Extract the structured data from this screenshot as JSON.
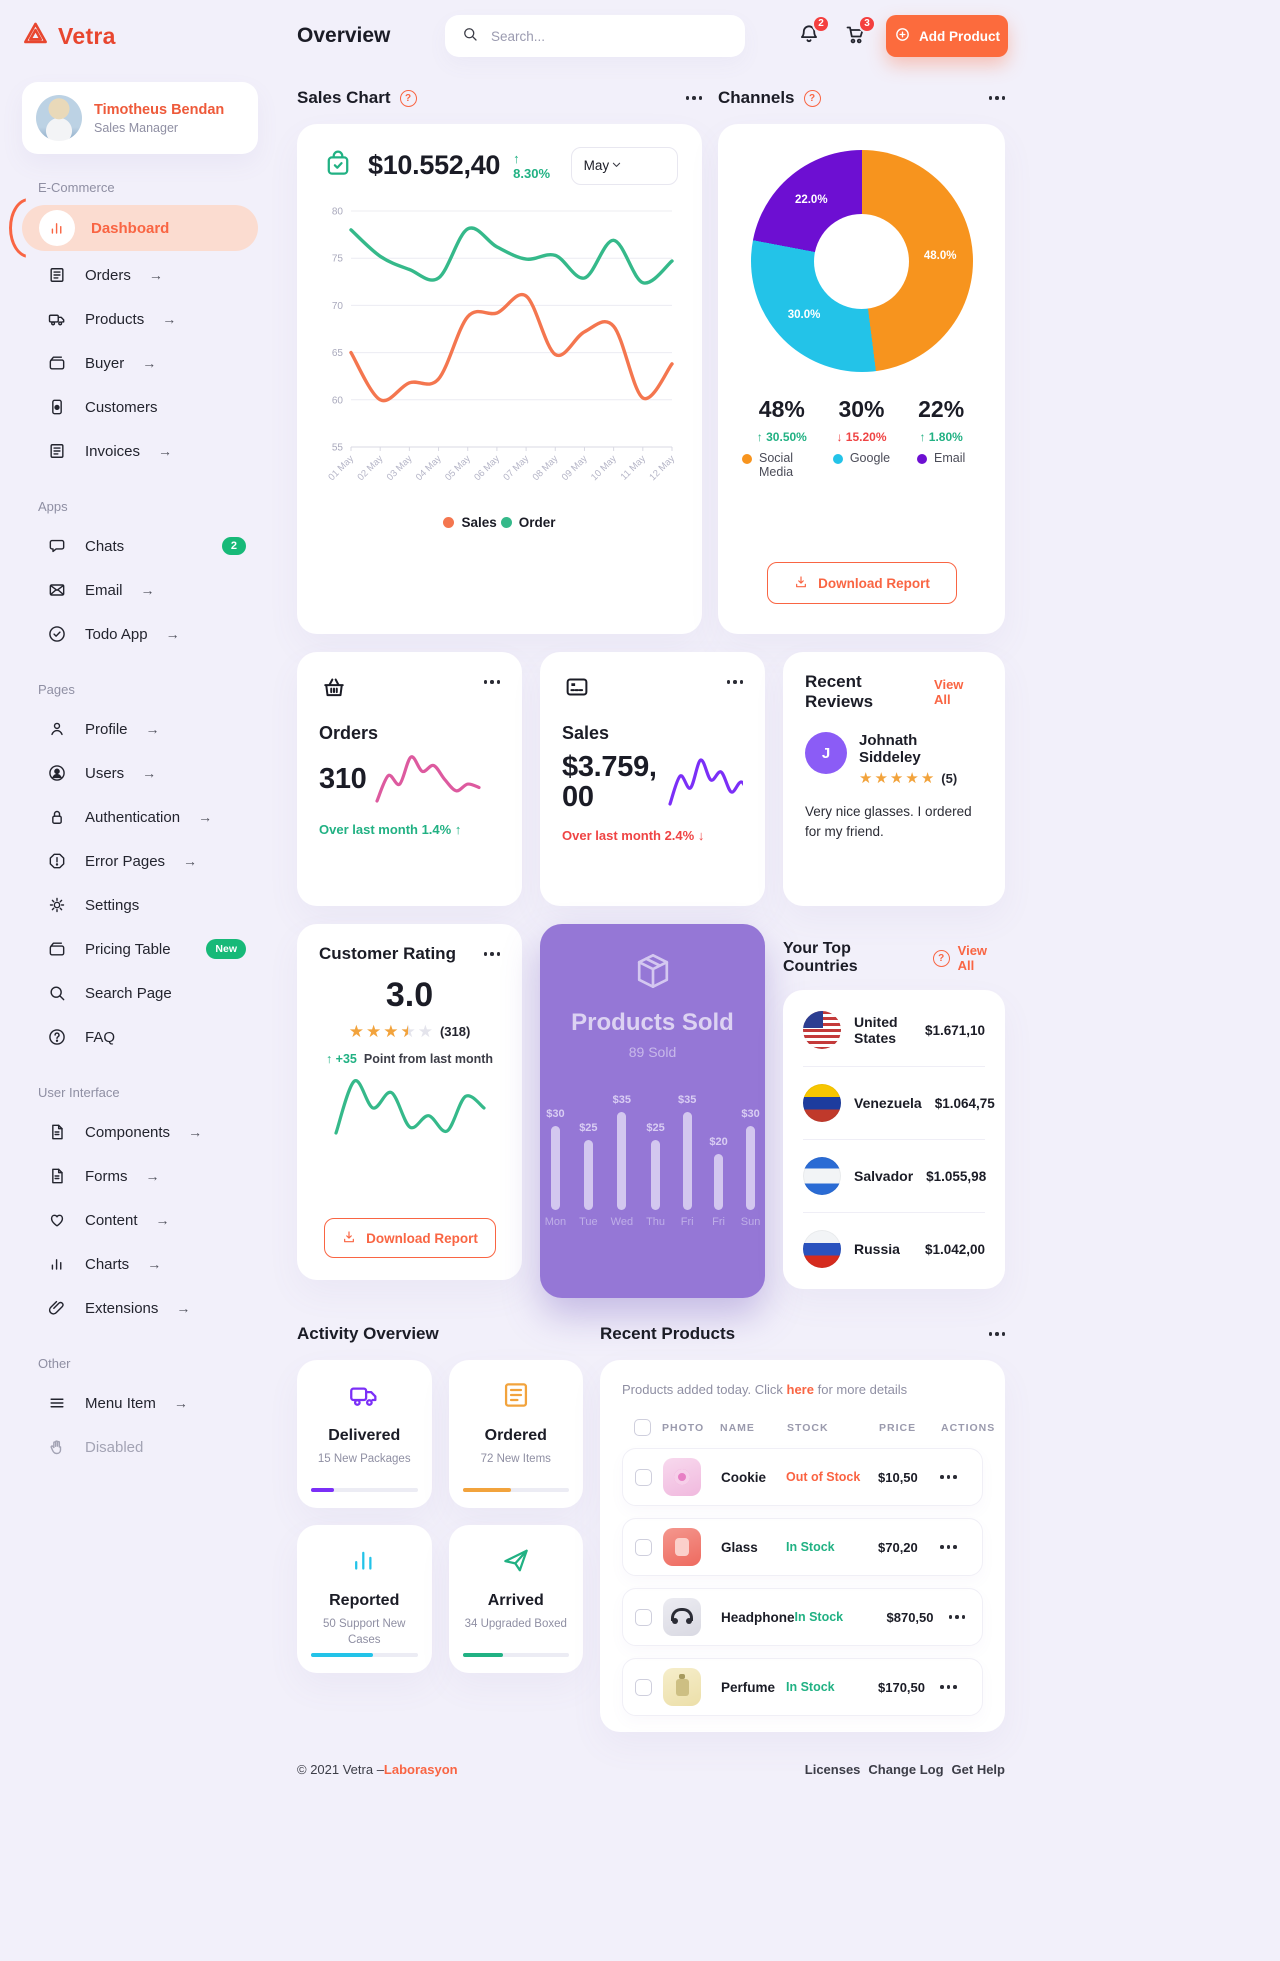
{
  "ui": {
    "dots": "...",
    "arrow": "→",
    "help": "?"
  },
  "brand": {
    "name": "Vetra"
  },
  "topbar": {
    "page_title": "Overview",
    "search_placeholder": "Search...",
    "notifications_count": "2",
    "cart_count": "3",
    "add_product_label": "Add Product"
  },
  "sidebar": {
    "user": {
      "name": "Timotheus Bendan",
      "role": "Sales Manager"
    },
    "sections": [
      {
        "label": "E-Commerce",
        "items": [
          {
            "label": "Dashboard",
            "icon": "bars",
            "active": true
          },
          {
            "label": "Orders",
            "icon": "receipt",
            "arrow": true
          },
          {
            "label": "Products",
            "icon": "truck",
            "arrow": true
          },
          {
            "label": "Buyer",
            "icon": "wallet",
            "arrow": true
          },
          {
            "label": "Customers",
            "icon": "idcard"
          },
          {
            "label": "Invoices",
            "icon": "receipt",
            "arrow": true
          }
        ]
      },
      {
        "label": "Apps",
        "items": [
          {
            "label": "Chats",
            "icon": "chat",
            "badge": "2"
          },
          {
            "label": "Email",
            "icon": "mail",
            "arrow": true
          },
          {
            "label": "Todo App",
            "icon": "check-circle",
            "arrow": true
          }
        ]
      },
      {
        "label": "Pages",
        "items": [
          {
            "label": "Profile",
            "icon": "person",
            "arrow": true
          },
          {
            "label": "Users",
            "icon": "person-circle",
            "arrow": true
          },
          {
            "label": "Authentication",
            "icon": "lock",
            "arrow": true
          },
          {
            "label": "Error Pages",
            "icon": "alert",
            "arrow": true
          },
          {
            "label": "Settings",
            "icon": "gear"
          },
          {
            "label": "Pricing Table",
            "icon": "wallet",
            "tag": "New"
          },
          {
            "label": "Search Page",
            "icon": "search"
          },
          {
            "label": "FAQ",
            "icon": "help"
          }
        ]
      },
      {
        "label": "User Interface",
        "items": [
          {
            "label": "Components",
            "icon": "file",
            "arrow": true
          },
          {
            "label": "Forms",
            "icon": "file",
            "arrow": true
          },
          {
            "label": "Content",
            "icon": "heart",
            "arrow": true
          },
          {
            "label": "Charts",
            "icon": "bars",
            "arrow": true
          },
          {
            "label": "Extensions",
            "icon": "clip",
            "arrow": true
          }
        ]
      },
      {
        "label": "Other",
        "items": [
          {
            "label": "Menu Item",
            "icon": "menu",
            "arrow": true
          },
          {
            "label": "Disabled",
            "icon": "hand",
            "disabled": true
          }
        ]
      }
    ]
  },
  "sales": {
    "section_title": "Sales Chart",
    "amount": "$10.552,40",
    "delta": "↑ 8.30%",
    "month": "May",
    "chart": {
      "type": "line",
      "ylim": [
        55,
        80
      ],
      "y_ticks": [
        80,
        75,
        70,
        65,
        60,
        55
      ],
      "x_labels": [
        "01 May",
        "02 May",
        "03 May",
        "04 May",
        "05 May",
        "06 May",
        "07 May",
        "08 May",
        "09 May",
        "10 May",
        "11 May",
        "12 May"
      ],
      "series": [
        {
          "name": "Sales",
          "color": "#f4764f",
          "values": [
            65,
            60,
            61.8,
            62.2,
            68.8,
            69.2,
            71,
            64.8,
            67.2,
            67.8,
            60.2,
            63.8
          ]
        },
        {
          "name": "Order",
          "color": "#35b98a",
          "values": [
            78,
            75.2,
            73.8,
            72.9,
            78.1,
            76.2,
            74.9,
            75.3,
            72.9,
            76.9,
            72.4,
            74.7
          ]
        }
      ],
      "legend_position": "bottom"
    }
  },
  "channels": {
    "section_title": "Channels",
    "download_label": "Download Report",
    "chart": {
      "type": "donut",
      "slices": [
        {
          "label": "Social Media",
          "value": 48,
          "big": "48%",
          "slice_label": "48.0%",
          "delta": "↑ 30.50%",
          "dir": "up",
          "color": "#f7941e"
        },
        {
          "label": "Google",
          "value": 30,
          "big": "30%",
          "slice_label": "30.0%",
          "delta": "↓ 15.20%",
          "dir": "down",
          "color": "#23c3e8"
        },
        {
          "label": "Email",
          "value": 22,
          "big": "22%",
          "slice_label": "22.0%",
          "delta": "↑ 1.80%",
          "dir": "up",
          "color": "#6d0fd2"
        }
      ]
    }
  },
  "orders_card": {
    "title": "Orders",
    "value": "310",
    "trend": "Over last month 1.4% ↑",
    "dir": "up",
    "spark": {
      "type": "line",
      "color": "#dd5a9f",
      "values": [
        1,
        4,
        3,
        6.2,
        4.5,
        5.2,
        3.5,
        2.2,
        3.0,
        2.6
      ]
    }
  },
  "sales_card": {
    "title": "Sales",
    "value": "$3.759,00",
    "trend": "Over last month 2.4% ↓",
    "dir": "down",
    "spark": {
      "type": "line",
      "color": "#7b2ff7",
      "values": [
        1.8,
        4.6,
        3.4,
        6.2,
        4.2,
        5.0,
        3.0,
        4.0,
        2.4,
        3.4
      ]
    }
  },
  "reviews": {
    "title": "Recent Reviews",
    "view_all": "View All",
    "review": {
      "initial": "J",
      "avatar_color": "#8b5cf6",
      "name": "Johnath Siddeley",
      "stars": [
        1,
        1,
        1,
        1,
        1
      ],
      "count": "(5)",
      "text": "Very nice glasses. I ordered for my friend."
    }
  },
  "rating": {
    "title": "Customer Rating",
    "value": "3.0",
    "stars": [
      1,
      1,
      1,
      0.5,
      0
    ],
    "count": "(318)",
    "delta": "↑ +35",
    "note": "Point from last month",
    "download_label": "Download Report",
    "spark": {
      "type": "line",
      "color": "#35b98a",
      "values": [
        2.5,
        5.2,
        3.8,
        4.6,
        2.8,
        3.4,
        2.6,
        4.4,
        3.8
      ]
    }
  },
  "products_sold": {
    "title": "Products Sold",
    "subtitle": "89 Sold",
    "chart": {
      "type": "bar",
      "categories": [
        "Mon",
        "Tue",
        "Wed",
        "Thu",
        "Fri",
        "Fri",
        "Sun"
      ],
      "values": [
        30,
        25,
        35,
        25,
        35,
        20,
        30
      ],
      "value_labels": [
        "$30",
        "$25",
        "$35",
        "$25",
        "$35",
        "$20",
        "$30"
      ]
    }
  },
  "countries": {
    "title": "Your Top Countries",
    "view_all": "View All",
    "rows": [
      {
        "flag": "us",
        "name": "United States",
        "amount": "$1.671,10"
      },
      {
        "flag": "ve",
        "name": "Venezuela",
        "amount": "$1.064,75"
      },
      {
        "flag": "sv",
        "name": "Salvador",
        "amount": "$1.055,98"
      },
      {
        "flag": "ru",
        "name": "Russia",
        "amount": "$1.042,00"
      }
    ]
  },
  "activity": {
    "title": "Activity Overview",
    "cards": [
      {
        "icon": "truck",
        "color": "#7b2ff7",
        "title": "Delivered",
        "subtitle": "15 New Packages",
        "progress": 22
      },
      {
        "icon": "receipt",
        "color": "#f2a33c",
        "title": "Ordered",
        "subtitle": "72 New Items",
        "progress": 46
      },
      {
        "icon": "bars",
        "color": "#23c3e8",
        "title": "Reported",
        "subtitle": "50 Support New Cases",
        "progress": 58
      },
      {
        "icon": "plane",
        "color": "#21b183",
        "title": "Arrived",
        "subtitle": "34 Upgraded Boxed",
        "progress": 38
      }
    ]
  },
  "products": {
    "title": "Recent Products",
    "intro_prefix": "Products added today. Click ",
    "intro_link": "here",
    "intro_suffix": " for more details",
    "columns": [
      "PHOTO",
      "NAME",
      "STOCK",
      "PRICE",
      "ACTIONS"
    ],
    "rows": [
      {
        "photo": "cookie",
        "name": "Cookie",
        "stock": "Out of Stock",
        "stock_dir": "out",
        "price": "$10,50"
      },
      {
        "photo": "glass",
        "name": "Glass",
        "stock": "In Stock",
        "stock_dir": "in",
        "price": "$70,20"
      },
      {
        "photo": "headphone",
        "name": "Headphone",
        "stock": "In Stock",
        "stock_dir": "in",
        "price": "$870,50"
      },
      {
        "photo": "perfume",
        "name": "Perfume",
        "stock": "In Stock",
        "stock_dir": "in",
        "price": "$170,50"
      }
    ]
  },
  "footer": {
    "copyright": "© 2021 Vetra – ",
    "brand_link": "Laborasyon",
    "links": [
      "Licenses",
      "Change Log",
      "Get Help"
    ]
  }
}
